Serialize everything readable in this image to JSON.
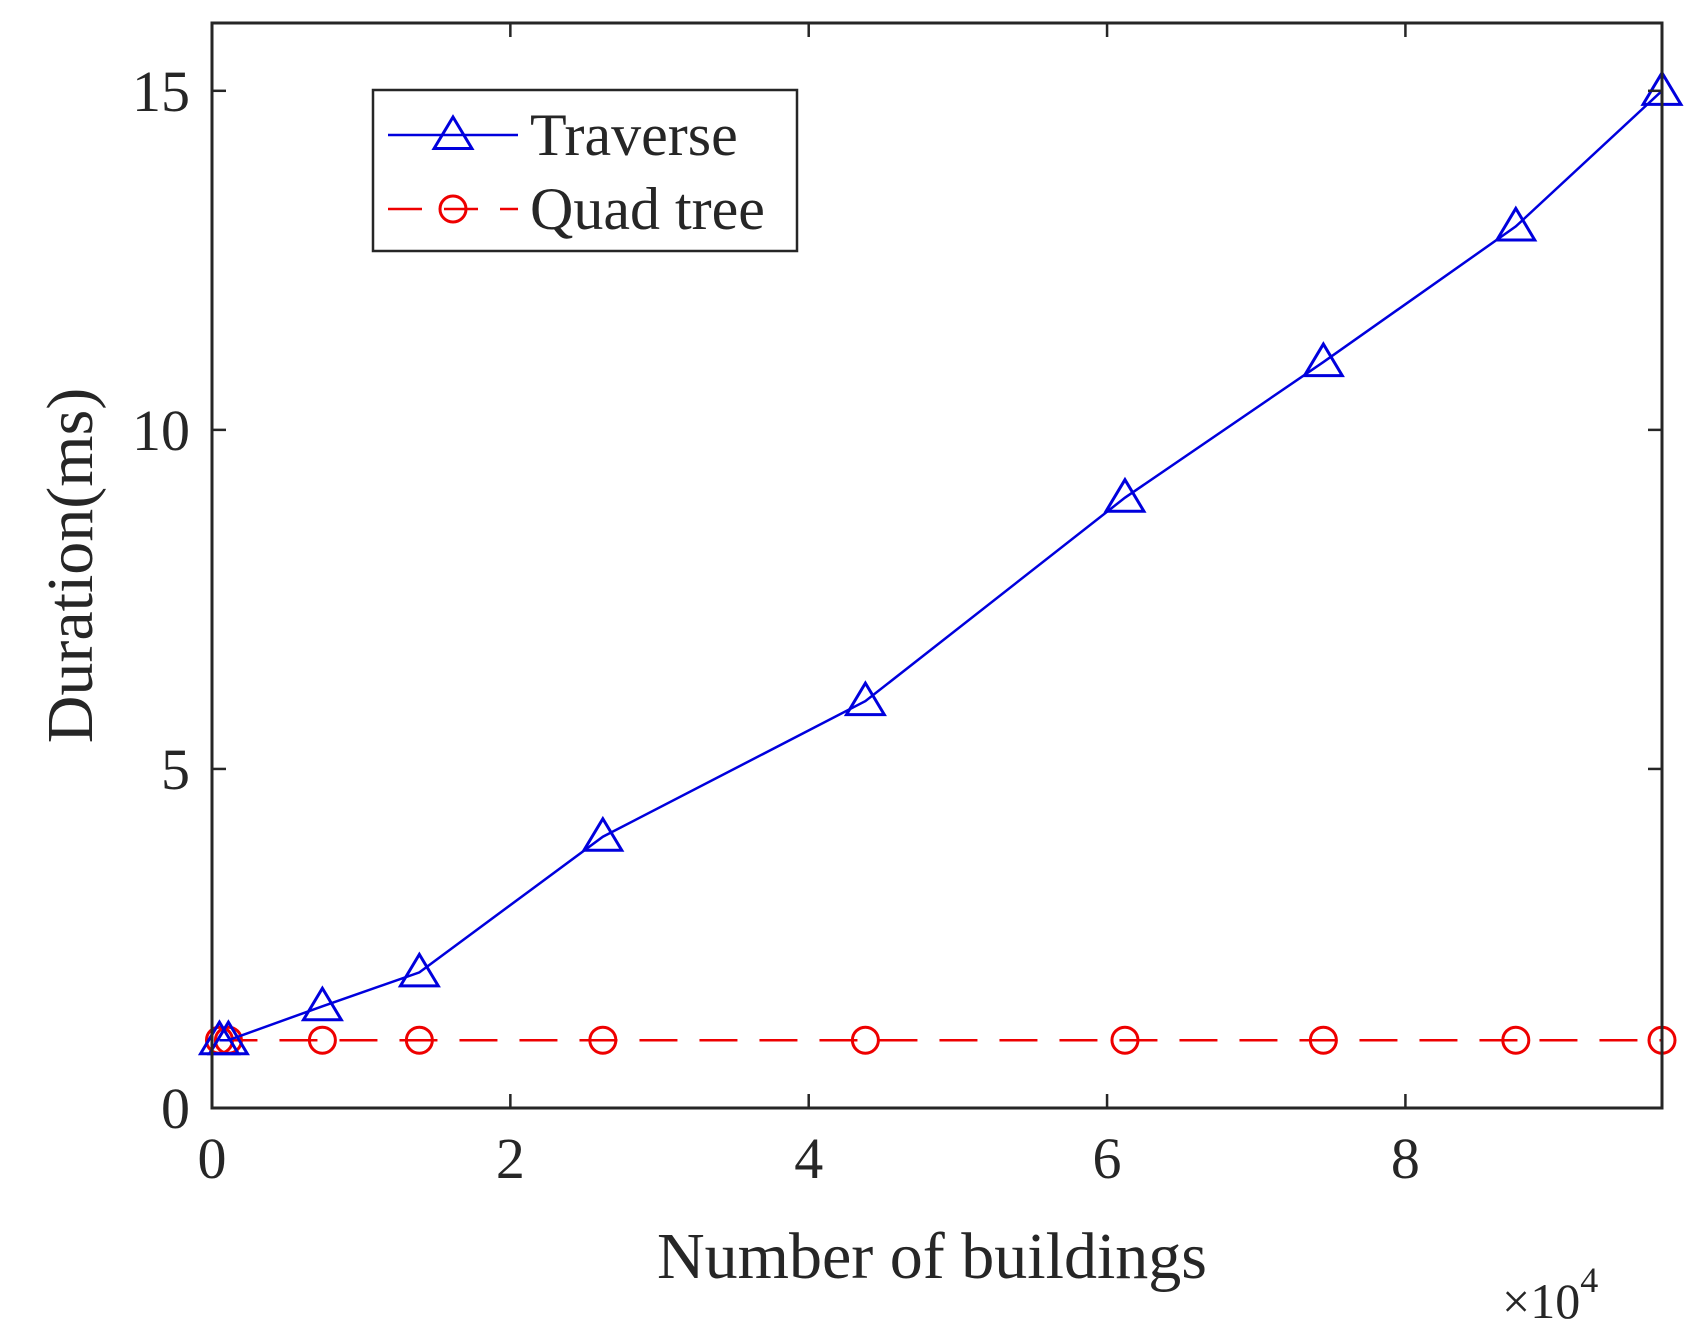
{
  "chart_data": {
    "type": "line",
    "xlabel": "Number of buildings",
    "ylabel": "Duration(ms)",
    "x_exponent_label": "×10",
    "x_exponent_power": "4",
    "x_multiplier": 10000,
    "xlim": [
      0,
      9.72
    ],
    "ylim": [
      0,
      16
    ],
    "xticks": [
      0,
      2,
      4,
      6,
      8
    ],
    "xtick_labels": [
      "0",
      "2",
      "4",
      "6",
      "8"
    ],
    "yticks": [
      0,
      5,
      10,
      15
    ],
    "ytick_labels": [
      "0",
      "5",
      "10",
      "15"
    ],
    "grid": false,
    "legend_position": "top-left",
    "series": [
      {
        "name": "Traverse",
        "color": "#0000dd",
        "marker": "triangle",
        "linestyle": "solid",
        "x": [
          0.05,
          0.11,
          0.74,
          1.39,
          2.62,
          4.38,
          6.12,
          7.45,
          8.74,
          9.72
        ],
        "y": [
          1,
          1,
          1.5,
          2,
          4,
          6,
          9,
          11,
          13,
          15
        ]
      },
      {
        "name": "Quad tree",
        "color": "#ee0000",
        "marker": "circle",
        "linestyle": "dashed",
        "x": [
          0.05,
          0.11,
          0.74,
          1.39,
          2.62,
          4.38,
          6.12,
          7.45,
          8.74,
          9.72
        ],
        "y": [
          1,
          1,
          1,
          1,
          1,
          1,
          1,
          1,
          1,
          1
        ]
      }
    ]
  }
}
